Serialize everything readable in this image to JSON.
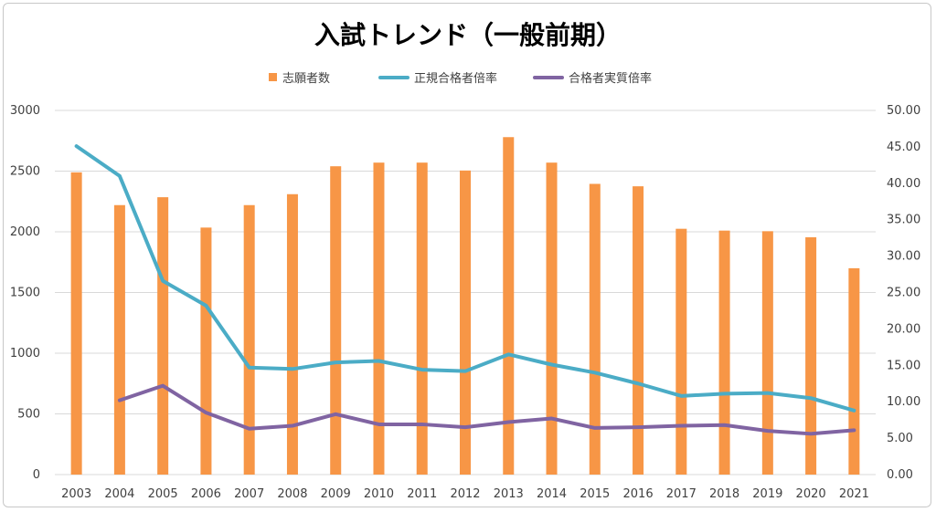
{
  "chart_data": {
    "type": "bar",
    "title": "入試トレンド（一般前期）",
    "categories": [
      "2003",
      "2004",
      "2005",
      "2006",
      "2007",
      "2008",
      "2009",
      "2010",
      "2011",
      "2012",
      "2013",
      "2014",
      "2015",
      "2016",
      "2017",
      "2018",
      "2019",
      "2020",
      "2021"
    ],
    "y_left": {
      "min": 0,
      "max": 3000,
      "step": 500,
      "tick_labels": [
        "0",
        "500",
        "1000",
        "1500",
        "2000",
        "2500",
        "3000"
      ]
    },
    "y_right": {
      "min": 0,
      "max": 50,
      "step": 5,
      "tick_labels": [
        "0.00",
        "5.00",
        "10.00",
        "15.00",
        "20.00",
        "25.00",
        "30.00",
        "35.00",
        "40.00",
        "45.00",
        "50.00"
      ]
    },
    "grid": true,
    "legend_position": "top",
    "series": [
      {
        "name": "志願者数",
        "type": "bar",
        "axis": "left",
        "color": "#f79646",
        "values": [
          2490,
          2220,
          2285,
          2035,
          2220,
          2310,
          2540,
          2570,
          2570,
          2505,
          2780,
          2570,
          2395,
          2375,
          2025,
          2010,
          2005,
          1955,
          1700
        ]
      },
      {
        "name": "正規合格者倍率",
        "type": "line",
        "axis": "right",
        "color": "#4bacc6",
        "values": [
          45.1,
          41.0,
          26.6,
          23.2,
          14.7,
          14.5,
          15.4,
          15.6,
          14.4,
          14.2,
          16.5,
          15.1,
          14.0,
          12.5,
          10.8,
          11.1,
          11.2,
          10.5,
          8.8
        ]
      },
      {
        "name": "合格者実質倍率",
        "type": "line",
        "axis": "right",
        "color": "#8064a2",
        "values": [
          null,
          10.2,
          12.2,
          8.5,
          6.3,
          6.7,
          8.3,
          6.9,
          6.9,
          6.5,
          7.2,
          7.7,
          6.4,
          6.5,
          6.7,
          6.8,
          6.0,
          5.6,
          6.1
        ]
      }
    ]
  }
}
